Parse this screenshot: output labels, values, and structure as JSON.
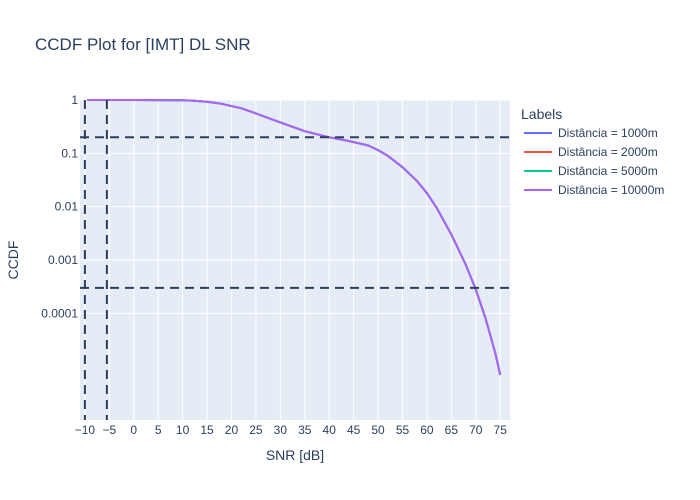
{
  "chart_data": {
    "type": "line",
    "title": "CCDF Plot for [IMT] DL SNR",
    "xlabel": "SNR [dB]",
    "ylabel": "CCDF",
    "xlim": [
      -11,
      77
    ],
    "ylim": [
      1e-06,
      1
    ],
    "y_scale": "log",
    "x_ticks": [
      -10,
      -5,
      0,
      5,
      10,
      15,
      20,
      25,
      30,
      35,
      40,
      45,
      50,
      55,
      60,
      65,
      70,
      75
    ],
    "x_tick_labels": [
      "−10",
      "−5",
      "0",
      "5",
      "10",
      "15",
      "20",
      "25",
      "30",
      "35",
      "40",
      "45",
      "50",
      "55",
      "60",
      "65",
      "70",
      "75"
    ],
    "y_ticks": [
      1,
      0.1,
      0.01,
      0.001,
      0.0001
    ],
    "y_tick_labels": [
      "1",
      "0.1",
      "0.01",
      "0.001",
      "0.0001"
    ],
    "grid": true,
    "legend_title": "Labels",
    "legend_position": "right",
    "series": [
      {
        "name": "Distância = 1000m",
        "color": "#636efa",
        "x": [
          -9.5,
          0,
          5,
          10,
          12,
          15,
          18,
          22,
          25,
          30,
          35,
          40,
          44,
          48,
          50,
          52,
          55,
          58,
          60,
          62,
          65,
          68,
          70,
          72,
          74,
          75
        ],
        "y": [
          1,
          0.998,
          0.995,
          0.99,
          0.975,
          0.93,
          0.85,
          0.7,
          0.56,
          0.38,
          0.26,
          0.2,
          0.17,
          0.14,
          0.115,
          0.09,
          0.055,
          0.03,
          0.018,
          0.0095,
          0.003,
          0.0008,
          0.00028,
          8e-05,
          1.8e-05,
          7e-06
        ]
      },
      {
        "name": "Distância = 2000m",
        "color": "#ef553b",
        "x": [
          -9.5,
          0,
          5,
          10,
          12,
          15,
          18,
          22,
          25,
          30,
          35,
          40,
          44,
          48,
          50,
          52,
          55,
          58,
          60,
          62,
          65,
          68,
          70,
          72,
          74,
          75
        ],
        "y": [
          1,
          0.998,
          0.995,
          0.99,
          0.975,
          0.93,
          0.85,
          0.7,
          0.56,
          0.38,
          0.26,
          0.2,
          0.17,
          0.14,
          0.115,
          0.09,
          0.055,
          0.03,
          0.018,
          0.0095,
          0.003,
          0.0008,
          0.00028,
          8e-05,
          1.8e-05,
          7e-06
        ]
      },
      {
        "name": "Distância = 5000m",
        "color": "#00cc96",
        "x": [
          -9.5,
          0,
          5,
          10,
          12,
          15,
          18,
          22,
          25,
          30,
          35,
          40,
          44,
          48,
          50,
          52,
          55,
          58,
          60,
          62,
          65,
          68,
          70,
          72,
          74,
          75
        ],
        "y": [
          1,
          0.998,
          0.995,
          0.99,
          0.975,
          0.93,
          0.85,
          0.7,
          0.56,
          0.38,
          0.26,
          0.2,
          0.17,
          0.14,
          0.115,
          0.09,
          0.055,
          0.03,
          0.018,
          0.0095,
          0.003,
          0.0008,
          0.00028,
          8e-05,
          1.8e-05,
          7e-06
        ]
      },
      {
        "name": "Distância = 10000m",
        "color": "#ab63fa",
        "x": [
          -9.5,
          0,
          5,
          10,
          12,
          15,
          18,
          22,
          25,
          30,
          35,
          40,
          44,
          48,
          50,
          52,
          55,
          58,
          60,
          62,
          65,
          68,
          70,
          72,
          74,
          75
        ],
        "y": [
          1,
          0.998,
          0.995,
          0.99,
          0.975,
          0.93,
          0.85,
          0.7,
          0.56,
          0.38,
          0.26,
          0.2,
          0.17,
          0.14,
          0.115,
          0.09,
          0.055,
          0.03,
          0.018,
          0.0095,
          0.003,
          0.0008,
          0.00028,
          8e-05,
          1.8e-05,
          7e-06
        ]
      }
    ],
    "reference_lines": {
      "color": "#2a3f5f",
      "horizontal": [
        0.2,
        0.0003
      ],
      "vertical": [
        -10,
        -5.5
      ]
    }
  }
}
